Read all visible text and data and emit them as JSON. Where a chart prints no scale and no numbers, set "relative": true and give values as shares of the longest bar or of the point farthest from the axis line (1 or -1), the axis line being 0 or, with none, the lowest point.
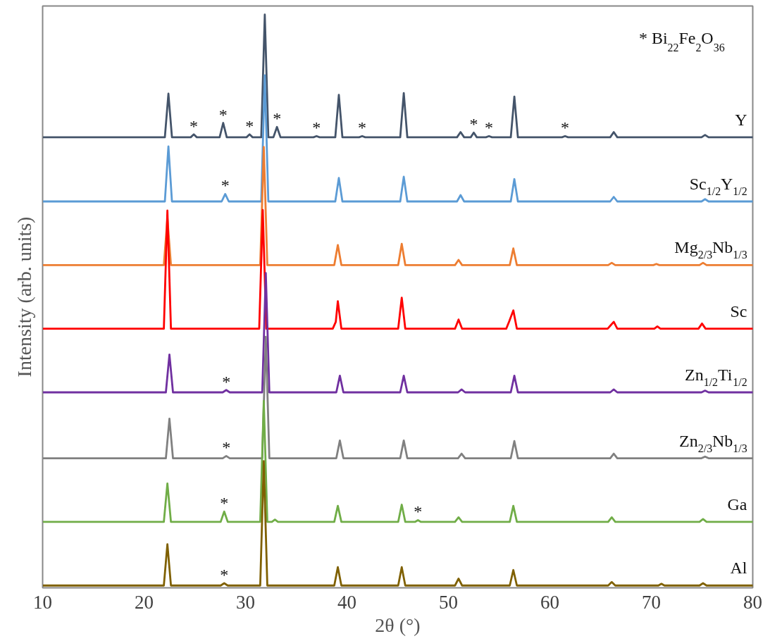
{
  "chart_data": {
    "type": "line",
    "relative": true,
    "xlabel": "2θ (°)",
    "ylabel": "Intensity (arb. units)",
    "xlim": [
      10,
      80
    ],
    "xticks": [
      10,
      20,
      30,
      40,
      50,
      60,
      70,
      80
    ],
    "grid": false,
    "legend": false,
    "tick_labels": "x",
    "marker": "none",
    "line_style": "solid",
    "series": [
      {
        "name": "Y",
        "color": "#44546a",
        "x": [
          10,
          22.05,
          22.4,
          22.75,
          24.6,
          24.9,
          25.2,
          27.45,
          27.8,
          28.15,
          30.1,
          30.4,
          30.7,
          31.55,
          31.9,
          32.25,
          32.75,
          33.1,
          33.45,
          36.7,
          37.0,
          37.3,
          38.85,
          39.2,
          39.55,
          41.2,
          41.5,
          41.8,
          45.25,
          45.6,
          45.95,
          50.85,
          51.2,
          51.55,
          52.2,
          52.5,
          52.8,
          53.7,
          54.0,
          54.3,
          56.15,
          56.5,
          56.85,
          61.2,
          61.5,
          61.8,
          65.95,
          66.3,
          66.65,
          74.95,
          75.3,
          75.65,
          80
        ],
        "values": [
          0.786,
          0.786,
          0.862,
          0.786,
          0.786,
          0.791,
          0.786,
          0.786,
          0.811,
          0.786,
          0.786,
          0.791,
          0.786,
          0.786,
          1.0,
          0.786,
          0.786,
          0.804,
          0.786,
          0.786,
          0.788,
          0.786,
          0.786,
          0.86,
          0.786,
          0.786,
          0.788,
          0.786,
          0.786,
          0.863,
          0.786,
          0.786,
          0.795,
          0.786,
          0.786,
          0.794,
          0.786,
          0.786,
          0.788,
          0.786,
          0.786,
          0.857,
          0.786,
          0.786,
          0.788,
          0.786,
          0.786,
          0.795,
          0.786,
          0.786,
          0.79,
          0.786,
          0.786
        ]
      },
      {
        "name": "Sc$_{1/2}$Y$_{1/2}$",
        "color": "#5b9bd5",
        "x": [
          10,
          22.05,
          22.4,
          22.75,
          27.65,
          28.0,
          28.35,
          31.55,
          31.9,
          32.25,
          38.85,
          39.2,
          39.55,
          45.25,
          45.6,
          45.95,
          50.85,
          51.2,
          51.55,
          56.15,
          56.5,
          56.85,
          65.95,
          66.3,
          66.65,
          74.95,
          75.3,
          75.65,
          80
        ],
        "values": [
          0.674,
          0.674,
          0.77,
          0.674,
          0.674,
          0.687,
          0.674,
          0.674,
          0.894,
          0.674,
          0.674,
          0.715,
          0.674,
          0.674,
          0.717,
          0.674,
          0.674,
          0.685,
          0.674,
          0.674,
          0.713,
          0.674,
          0.674,
          0.682,
          0.674,
          0.674,
          0.678,
          0.674,
          0.674
        ]
      },
      {
        "name": "Mg$_{2/3}$Nb$_{1/3}$",
        "color": "#ed7d31",
        "x": [
          10,
          21.95,
          22.3,
          22.65,
          31.45,
          31.8,
          32.15,
          38.75,
          39.1,
          39.45,
          45.05,
          45.4,
          45.75,
          50.65,
          51.0,
          51.35,
          56.05,
          56.4,
          56.75,
          65.75,
          66.1,
          66.45,
          70.2,
          70.5,
          70.8,
          74.75,
          75.1,
          75.45,
          80
        ],
        "values": [
          0.563,
          0.563,
          0.645,
          0.563,
          0.563,
          0.769,
          0.563,
          0.563,
          0.598,
          0.563,
          0.563,
          0.6,
          0.563,
          0.563,
          0.572,
          0.563,
          0.563,
          0.592,
          0.563,
          0.563,
          0.567,
          0.563,
          0.563,
          0.565,
          0.563,
          0.563,
          0.567,
          0.563,
          0.563
        ]
      },
      {
        "name": "Sc",
        "color": "#ff0000",
        "x": [
          10,
          21.95,
          22.3,
          22.65,
          31.35,
          31.7,
          32.05,
          38.6,
          38.9,
          39.1,
          39.45,
          45.05,
          45.4,
          45.75,
          50.65,
          51.0,
          51.35,
          55.7,
          56.0,
          56.4,
          56.75,
          65.7,
          66.0,
          66.3,
          66.65,
          70.3,
          70.6,
          70.9,
          74.65,
          75.0,
          75.35,
          80
        ],
        "values": [
          0.452,
          0.452,
          0.658,
          0.452,
          0.452,
          0.659,
          0.452,
          0.452,
          0.464,
          0.5,
          0.452,
          0.452,
          0.506,
          0.452,
          0.452,
          0.468,
          0.452,
          0.452,
          0.465,
          0.484,
          0.452,
          0.452,
          0.458,
          0.464,
          0.452,
          0.452,
          0.456,
          0.452,
          0.452,
          0.461,
          0.452,
          0.452
        ]
      },
      {
        "name": "Zn$_{1/2}$Ti$_{1/2}$",
        "color": "#7030a0",
        "x": [
          10,
          22.15,
          22.5,
          22.85,
          27.75,
          28.1,
          28.45,
          31.65,
          32.0,
          32.35,
          38.95,
          39.3,
          39.65,
          45.25,
          45.6,
          45.95,
          50.95,
          51.3,
          51.65,
          56.15,
          56.5,
          56.85,
          65.95,
          66.3,
          66.65,
          74.95,
          75.3,
          75.65,
          80
        ],
        "values": [
          0.341,
          0.341,
          0.407,
          0.341,
          0.341,
          0.345,
          0.341,
          0.341,
          0.549,
          0.341,
          0.341,
          0.37,
          0.341,
          0.341,
          0.37,
          0.341,
          0.341,
          0.346,
          0.341,
          0.341,
          0.37,
          0.341,
          0.341,
          0.346,
          0.341,
          0.341,
          0.344,
          0.341,
          0.341
        ]
      },
      {
        "name": "Zn$_{2/3}$Nb$_{1/3}$",
        "color": "#808080",
        "x": [
          10,
          22.15,
          22.5,
          22.85,
          27.75,
          28.1,
          28.45,
          31.65,
          32.0,
          32.35,
          38.95,
          39.3,
          39.65,
          45.25,
          45.6,
          45.95,
          50.95,
          51.3,
          51.65,
          56.15,
          56.5,
          56.85,
          65.95,
          66.3,
          66.65,
          74.95,
          75.3,
          75.65,
          80
        ],
        "values": [
          0.226,
          0.226,
          0.295,
          0.226,
          0.226,
          0.23,
          0.226,
          0.226,
          0.438,
          0.226,
          0.226,
          0.257,
          0.226,
          0.226,
          0.257,
          0.226,
          0.226,
          0.234,
          0.226,
          0.226,
          0.256,
          0.226,
          0.226,
          0.234,
          0.226,
          0.226,
          0.229,
          0.226,
          0.226
        ]
      },
      {
        "name": "Ga",
        "color": "#70ad47",
        "x": [
          10,
          21.95,
          22.3,
          22.65,
          27.55,
          27.9,
          28.25,
          31.45,
          31.8,
          32.15,
          32.6,
          32.9,
          33.2,
          38.75,
          39.1,
          39.45,
          45.05,
          45.4,
          45.75,
          46.7,
          47.0,
          47.3,
          50.65,
          51.0,
          51.35,
          56.05,
          56.4,
          56.75,
          65.75,
          66.1,
          66.45,
          74.75,
          75.1,
          75.45,
          80
        ],
        "values": [
          0.115,
          0.115,
          0.182,
          0.115,
          0.115,
          0.133,
          0.115,
          0.115,
          0.326,
          0.115,
          0.115,
          0.119,
          0.115,
          0.115,
          0.143,
          0.115,
          0.115,
          0.145,
          0.115,
          0.115,
          0.118,
          0.115,
          0.115,
          0.123,
          0.115,
          0.115,
          0.143,
          0.115,
          0.115,
          0.123,
          0.115,
          0.115,
          0.12,
          0.115,
          0.115
        ]
      },
      {
        "name": "Al",
        "color": "#7f6000",
        "x": [
          10,
          21.95,
          22.3,
          22.65,
          27.55,
          27.9,
          28.25,
          31.45,
          31.8,
          32.15,
          38.75,
          39.1,
          39.45,
          45.05,
          45.4,
          45.75,
          50.65,
          51.0,
          51.35,
          56.05,
          56.4,
          56.75,
          65.75,
          66.1,
          66.45,
          70.7,
          71.0,
          71.3,
          74.75,
          75.1,
          75.45,
          80
        ],
        "values": [
          0.004,
          0.004,
          0.076,
          0.004,
          0.004,
          0.008,
          0.004,
          0.004,
          0.221,
          0.004,
          0.004,
          0.036,
          0.004,
          0.004,
          0.036,
          0.004,
          0.004,
          0.016,
          0.004,
          0.004,
          0.031,
          0.004,
          0.004,
          0.01,
          0.004,
          0.004,
          0.007,
          0.004,
          0.004,
          0.008,
          0.004,
          0.004
        ]
      }
    ],
    "annotations": [
      "* Bi$_{22}$Fe$_{2}$O$_{36}$",
      {
        "text": "*",
        "x": 24.9,
        "y": 0.791
      },
      {
        "text": "*",
        "x": 27.8,
        "y": 0.811
      },
      {
        "text": "*",
        "x": 30.4,
        "y": 0.791
      },
      {
        "text": "*",
        "x": 33.1,
        "y": 0.804
      },
      {
        "text": "*",
        "x": 37.0,
        "y": 0.788
      },
      {
        "text": "*",
        "x": 41.5,
        "y": 0.788
      },
      {
        "text": "*",
        "x": 52.5,
        "y": 0.794
      },
      {
        "text": "*",
        "x": 54.0,
        "y": 0.788
      },
      {
        "text": "*",
        "x": 61.5,
        "y": 0.788
      },
      {
        "text": "*",
        "x": 28.0,
        "y": 0.687
      },
      {
        "text": "*",
        "x": 28.1,
        "y": 0.345
      },
      {
        "text": "*",
        "x": 28.1,
        "y": 0.23
      },
      {
        "text": "*",
        "x": 27.9,
        "y": 0.133
      },
      {
        "text": "*",
        "x": 47.0,
        "y": 0.118
      },
      {
        "text": "*",
        "x": 27.9,
        "y": 0.008
      }
    ]
  }
}
